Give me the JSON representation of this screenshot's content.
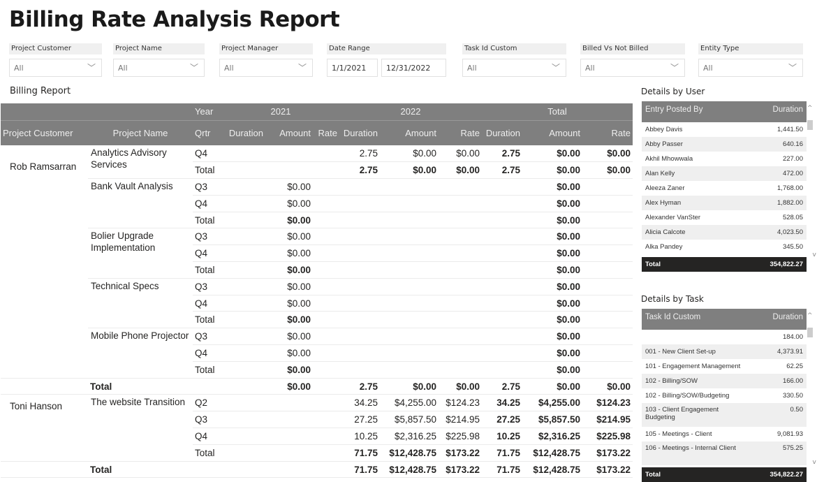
{
  "title": "Billing Rate Analysis Report",
  "filters": [
    {
      "label": "Project Customer",
      "value": "All"
    },
    {
      "label": "Project Name",
      "value": "All"
    },
    {
      "label": "Project Manager",
      "value": "All"
    },
    {
      "label": "Date Range",
      "start": "1/1/2021",
      "end": "12/31/2022"
    },
    {
      "label": "Task Id Custom",
      "value": "All"
    },
    {
      "label": "Billed Vs Not Billed",
      "value": "All"
    },
    {
      "label": "Entity Type",
      "value": "All"
    }
  ],
  "billing": {
    "title": "Billing Report",
    "header_top": [
      "Year",
      "2021",
      "2022",
      "Total"
    ],
    "header_cols": [
      "Project Customer",
      "Project Name",
      "Qrtr",
      "Duration",
      "Amount",
      "Rate",
      "Duration",
      "Amount",
      "Rate",
      "Duration",
      "Amount",
      "Rate"
    ],
    "customers": [
      {
        "name": "Rob Ramsarran",
        "projects": [
          {
            "name": "Analytics Advisory Services",
            "rows": [
              [
                "Q4",
                "",
                "",
                "",
                "2.75",
                "$0.00",
                "$0.00",
                "2.75",
                "$0.00",
                "$0.00"
              ],
              [
                "Total",
                "",
                "",
                "",
                "2.75",
                "$0.00",
                "$0.00",
                "2.75",
                "$0.00",
                "$0.00"
              ]
            ]
          },
          {
            "name": "Bank Vault Analysis",
            "rows": [
              [
                "Q3",
                "",
                "$0.00",
                "",
                "",
                "",
                "",
                "",
                "$0.00",
                ""
              ],
              [
                "Q4",
                "",
                "$0.00",
                "",
                "",
                "",
                "",
                "",
                "$0.00",
                ""
              ],
              [
                "Total",
                "",
                "$0.00",
                "",
                "",
                "",
                "",
                "",
                "$0.00",
                ""
              ]
            ]
          },
          {
            "name": "Bolier Upgrade Implementation",
            "rows": [
              [
                "Q3",
                "",
                "$0.00",
                "",
                "",
                "",
                "",
                "",
                "$0.00",
                ""
              ],
              [
                "Q4",
                "",
                "$0.00",
                "",
                "",
                "",
                "",
                "",
                "$0.00",
                ""
              ],
              [
                "Total",
                "",
                "$0.00",
                "",
                "",
                "",
                "",
                "",
                "$0.00",
                ""
              ]
            ]
          },
          {
            "name": "Technical Specs",
            "rows": [
              [
                "Q3",
                "",
                "$0.00",
                "",
                "",
                "",
                "",
                "",
                "$0.00",
                ""
              ],
              [
                "Q4",
                "",
                "$0.00",
                "",
                "",
                "",
                "",
                "",
                "$0.00",
                ""
              ],
              [
                "Total",
                "",
                "$0.00",
                "",
                "",
                "",
                "",
                "",
                "$0.00",
                ""
              ]
            ]
          },
          {
            "name": "Mobile Phone Projector",
            "rows": [
              [
                "Q3",
                "",
                "$0.00",
                "",
                "",
                "",
                "",
                "",
                "$0.00",
                ""
              ],
              [
                "Q4",
                "",
                "$0.00",
                "",
                "",
                "",
                "",
                "",
                "$0.00",
                ""
              ],
              [
                "Total",
                "",
                "$0.00",
                "",
                "",
                "",
                "",
                "",
                "$0.00",
                ""
              ]
            ]
          }
        ],
        "total": [
          "Total",
          "",
          "$0.00",
          "",
          "2.75",
          "$0.00",
          "$0.00",
          "2.75",
          "$0.00",
          "$0.00"
        ]
      },
      {
        "name": "Toni Hanson",
        "projects": [
          {
            "name": "The website Transition",
            "rows": [
              [
                "Q2",
                "",
                "",
                "",
                "34.25",
                "$4,255.00",
                "$124.23",
                "34.25",
                "$4,255.00",
                "$124.23"
              ],
              [
                "Q3",
                "",
                "",
                "",
                "27.25",
                "$5,857.50",
                "$214.95",
                "27.25",
                "$5,857.50",
                "$214.95"
              ],
              [
                "Q4",
                "",
                "",
                "",
                "10.25",
                "$2,316.25",
                "$225.98",
                "10.25",
                "$2,316.25",
                "$225.98"
              ],
              [
                "Total",
                "",
                "",
                "",
                "71.75",
                "$12,428.75",
                "$173.22",
                "71.75",
                "$12,428.75",
                "$173.22"
              ]
            ]
          }
        ],
        "total": [
          "Total",
          "",
          "",
          "",
          "71.75",
          "$12,428.75",
          "$173.22",
          "71.75",
          "$12,428.75",
          "$173.22"
        ]
      }
    ]
  },
  "details_user": {
    "title": "Details by User",
    "col1": "Entry Posted By",
    "col2": "Duration",
    "rows": [
      [
        "Abbey Davis",
        "1,441.50"
      ],
      [
        "Abby Passer",
        "640.16"
      ],
      [
        "Akhil Mhowwala",
        "227.00"
      ],
      [
        "Alan Kelly",
        "472.00"
      ],
      [
        "Aleeza Zaner",
        "1,768.00"
      ],
      [
        "Alex Hyman",
        "1,882.00"
      ],
      [
        "Alexander VanSter",
        "528.05"
      ],
      [
        "Alicia Calcote",
        "4,023.50"
      ],
      [
        "Alka Pandey",
        "345.50"
      ]
    ],
    "total_label": "Total",
    "total": "354,822.27"
  },
  "details_task": {
    "title": "Details by Task",
    "col1": "Task Id Custom",
    "col2": "Duration",
    "rows": [
      [
        "",
        "184.00"
      ],
      [
        "001 - New Client Set-up",
        "4,373.91"
      ],
      [
        "101 - Engagement Management",
        "62.25"
      ],
      [
        "102 - Billing/SOW",
        "166.00"
      ],
      [
        "102 - Billing/SOW/Budgeting",
        "330.50"
      ],
      [
        "103 - Client Engagement Budgeting",
        "0.50"
      ],
      [
        "105 - Meetings - Client",
        "9,081.93"
      ],
      [
        "106 - Meetings - Internal Client",
        "575.25"
      ]
    ],
    "total_label": "Total",
    "total": "354,822.27"
  }
}
